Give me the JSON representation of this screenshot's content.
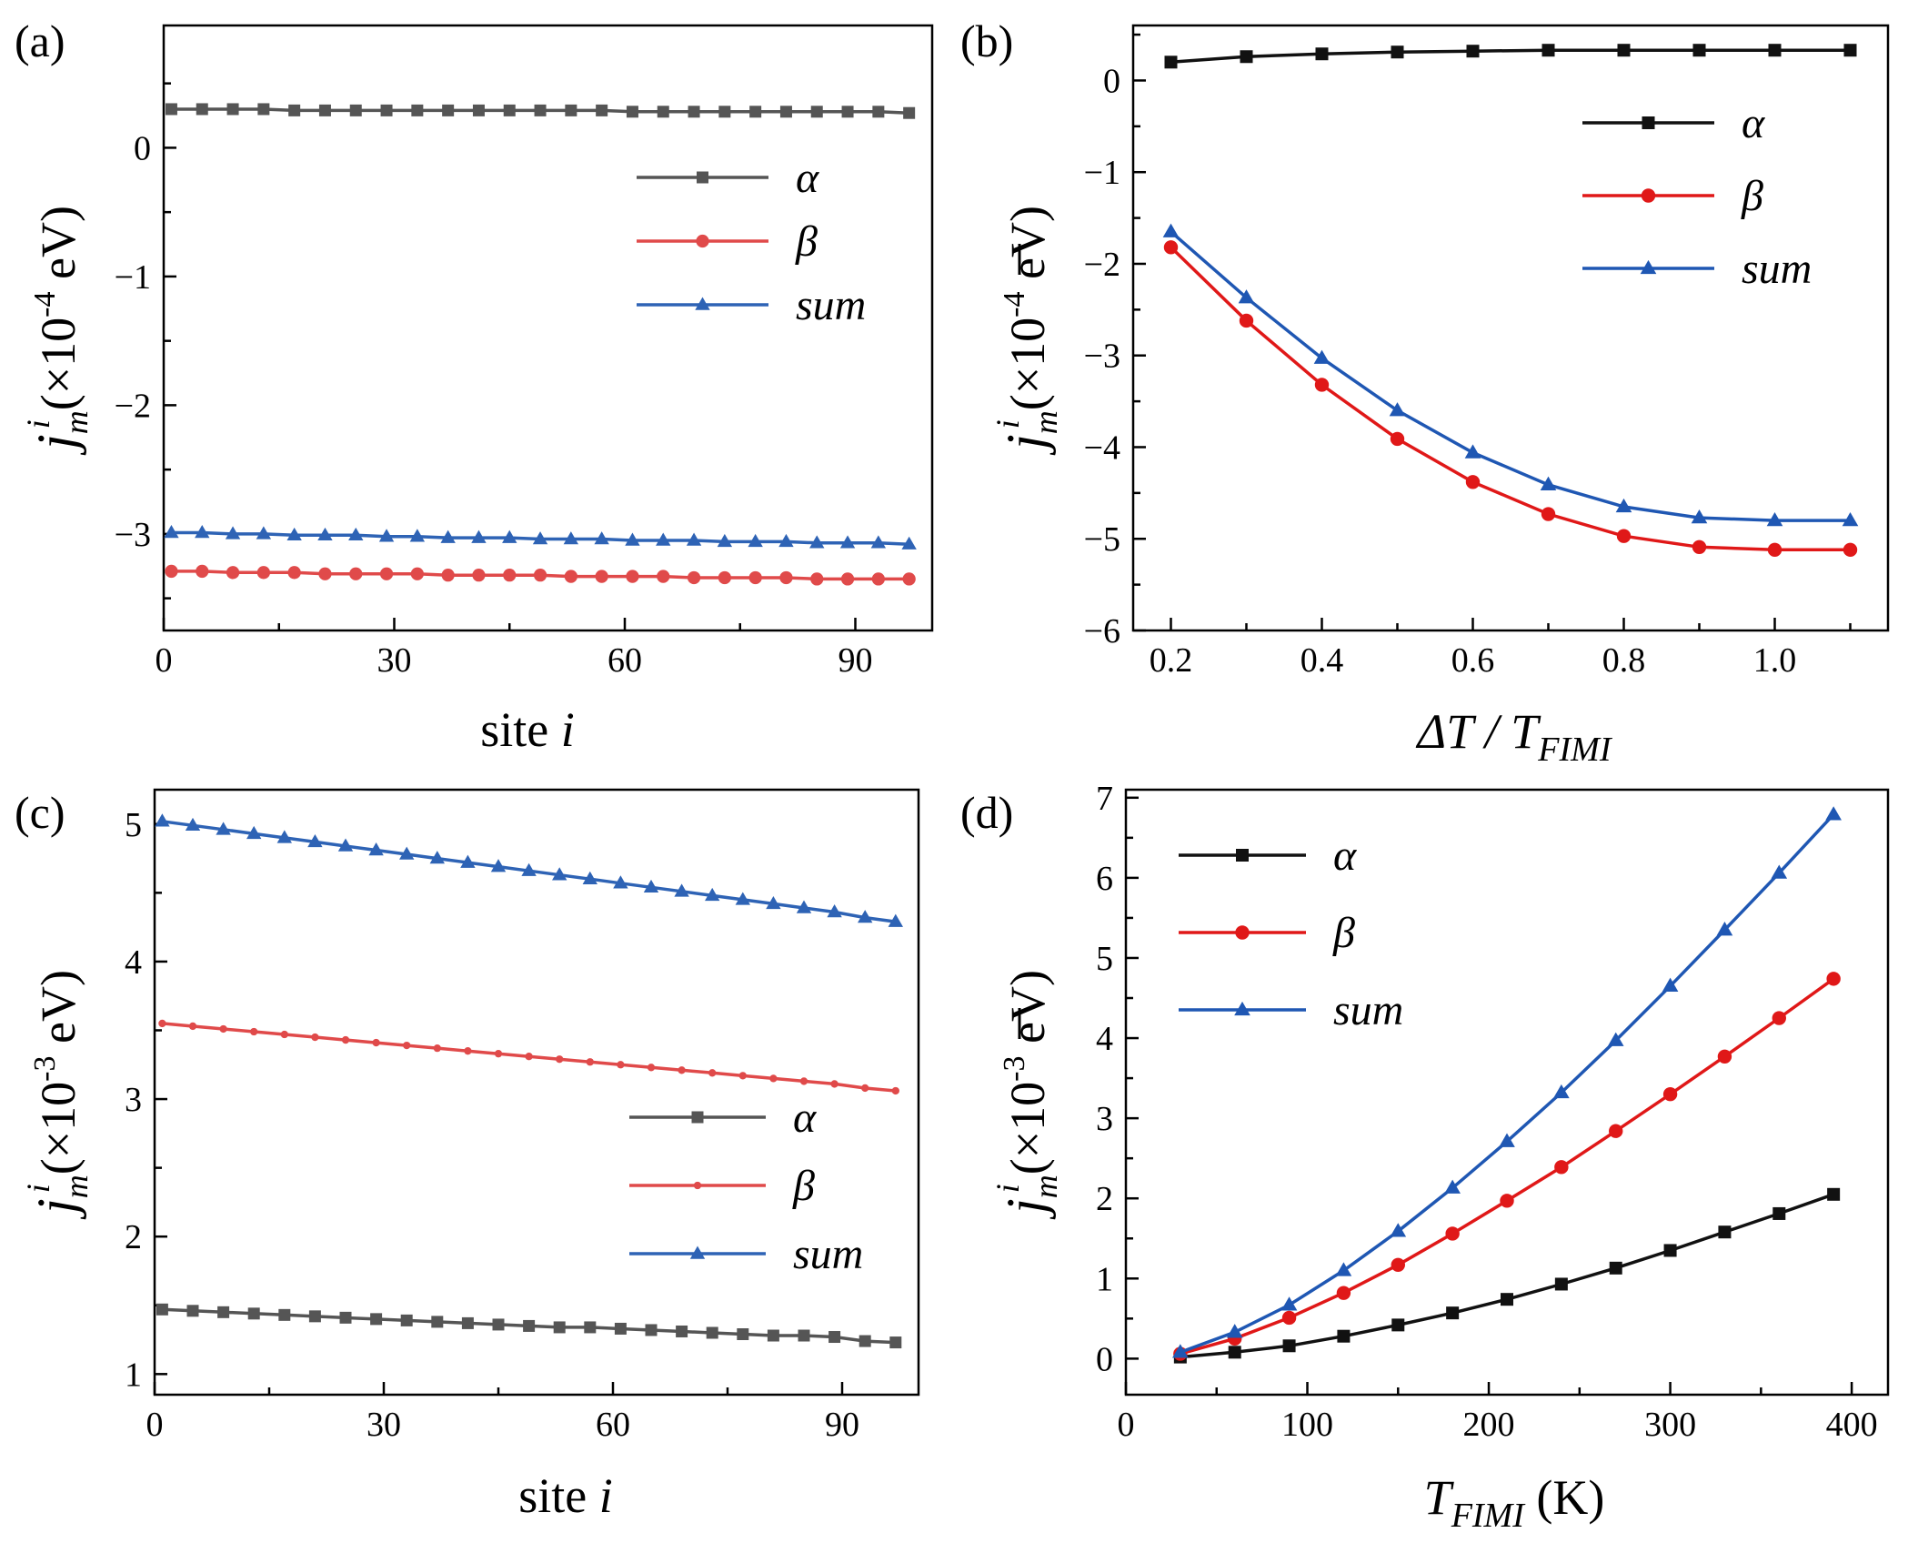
{
  "colors": {
    "alpha_gray": "#555555",
    "beta_salmon": "#e04a4a",
    "sum_blue": "#2e63b5",
    "alpha_black": "#111111",
    "beta_red": "#e01818",
    "sum_blue_dark": "#1f57b3"
  },
  "chart_data": [
    {
      "id": "a",
      "panel_label": "(a)",
      "type": "line",
      "xlabel": "site i",
      "xlabel_main": "site ",
      "xlabel_ital": "i",
      "ylabel": "j_m^i (×10⁻⁴ eV)",
      "ylabel_j": "j",
      "ylabel_sub": "m",
      "ylabel_sup": "i",
      "ylabel_unit": "(×10",
      "ylabel_exp": "-4",
      "ylabel_tail": " eV)",
      "ylabel_bar": false,
      "xlim": [
        0,
        100
      ],
      "ylim": [
        -3.75,
        0.95
      ],
      "xticks": [
        0,
        30,
        60,
        90
      ],
      "xtick_labels": [
        "0",
        "30",
        "60",
        "90"
      ],
      "yticks": [
        0,
        -1,
        -2,
        -3
      ],
      "ytick_labels": [
        "0",
        "−1",
        "−2",
        "−3"
      ],
      "legend": [
        "α",
        "β",
        "sum"
      ],
      "legend_location": "right",
      "series": [
        {
          "name": "α",
          "color_key": "alpha_gray",
          "marker": "square",
          "x": [
            1,
            5,
            9,
            13,
            17,
            21,
            25,
            29,
            33,
            37,
            41,
            45,
            49,
            53,
            57,
            61,
            65,
            69,
            73,
            77,
            81,
            85,
            89,
            93,
            97
          ],
          "y": [
            0.3,
            0.3,
            0.3,
            0.3,
            0.29,
            0.29,
            0.29,
            0.29,
            0.29,
            0.29,
            0.29,
            0.29,
            0.29,
            0.29,
            0.29,
            0.28,
            0.28,
            0.28,
            0.28,
            0.28,
            0.28,
            0.28,
            0.28,
            0.28,
            0.27
          ]
        },
        {
          "name": "β",
          "color_key": "beta_salmon",
          "marker": "circle",
          "x": [
            1,
            5,
            9,
            13,
            17,
            21,
            25,
            29,
            33,
            37,
            41,
            45,
            49,
            53,
            57,
            61,
            65,
            69,
            73,
            77,
            81,
            85,
            89,
            93,
            97
          ],
          "y": [
            -3.29,
            -3.29,
            -3.3,
            -3.3,
            -3.3,
            -3.31,
            -3.31,
            -3.31,
            -3.31,
            -3.32,
            -3.32,
            -3.32,
            -3.32,
            -3.33,
            -3.33,
            -3.33,
            -3.33,
            -3.34,
            -3.34,
            -3.34,
            -3.34,
            -3.35,
            -3.35,
            -3.35,
            -3.35
          ]
        },
        {
          "name": "sum",
          "color_key": "sum_blue",
          "marker": "triangle",
          "x": [
            1,
            5,
            9,
            13,
            17,
            21,
            25,
            29,
            33,
            37,
            41,
            45,
            49,
            53,
            57,
            61,
            65,
            69,
            73,
            77,
            81,
            85,
            89,
            93,
            97
          ],
          "y": [
            -2.99,
            -2.99,
            -3.0,
            -3.0,
            -3.01,
            -3.01,
            -3.01,
            -3.02,
            -3.02,
            -3.03,
            -3.03,
            -3.03,
            -3.04,
            -3.04,
            -3.04,
            -3.05,
            -3.05,
            -3.05,
            -3.06,
            -3.06,
            -3.06,
            -3.07,
            -3.07,
            -3.07,
            -3.08
          ]
        }
      ]
    },
    {
      "id": "b",
      "panel_label": "(b)",
      "type": "line",
      "xlabel": "ΔT / T_FIMI",
      "xlabel_main": "ΔT / T",
      "xlabel_ital": "FIMI",
      "ylabel": "j̄_m^i (×10⁻⁴ eV)",
      "ylabel_j": "j",
      "ylabel_sub": "m",
      "ylabel_sup": "i",
      "ylabel_unit": "(×10",
      "ylabel_exp": "-4",
      "ylabel_tail": " eV)",
      "ylabel_bar": true,
      "xlim": [
        0.15,
        1.15
      ],
      "ylim": [
        -6,
        0.6
      ],
      "xticks": [
        0.2,
        0.4,
        0.6,
        0.8,
        1.0
      ],
      "xtick_labels": [
        "0.2",
        "0.4",
        "0.6",
        "0.8",
        "1.0"
      ],
      "yticks": [
        0,
        -1,
        -2,
        -3,
        -4,
        -5,
        -6
      ],
      "ytick_labels": [
        "0",
        "−1",
        "−2",
        "−3",
        "−4",
        "−5",
        "−6"
      ],
      "legend": [
        "α",
        "β",
        "sum"
      ],
      "legend_location": "top-right",
      "series": [
        {
          "name": "α",
          "color_key": "alpha_black",
          "marker": "square",
          "x": [
            0.2,
            0.3,
            0.4,
            0.5,
            0.6,
            0.7,
            0.8,
            0.9,
            1.0,
            1.1
          ],
          "y": [
            0.2,
            0.26,
            0.29,
            0.31,
            0.32,
            0.33,
            0.33,
            0.33,
            0.33,
            0.33
          ]
        },
        {
          "name": "β",
          "color_key": "beta_red",
          "marker": "circle",
          "x": [
            0.2,
            0.3,
            0.4,
            0.5,
            0.6,
            0.7,
            0.8,
            0.9,
            1.0,
            1.1
          ],
          "y": [
            -1.82,
            -2.62,
            -3.32,
            -3.91,
            -4.38,
            -4.73,
            -4.97,
            -5.09,
            -5.12,
            -5.12
          ]
        },
        {
          "name": "sum",
          "color_key": "sum_blue_dark",
          "marker": "triangle",
          "x": [
            0.2,
            0.3,
            0.4,
            0.5,
            0.6,
            0.7,
            0.8,
            0.9,
            1.0,
            1.1
          ],
          "y": [
            -1.65,
            -2.37,
            -3.03,
            -3.6,
            -4.06,
            -4.41,
            -4.65,
            -4.77,
            -4.8,
            -4.8
          ]
        }
      ]
    },
    {
      "id": "c",
      "panel_label": "(c)",
      "type": "line",
      "xlabel": "site i",
      "xlabel_main": "site ",
      "xlabel_ital": "i",
      "ylabel": "j_m^i (×10⁻³ eV)",
      "ylabel_j": "j",
      "ylabel_sub": "m",
      "ylabel_sup": "i",
      "ylabel_unit": "(×10",
      "ylabel_exp": "-3",
      "ylabel_tail": " eV)",
      "ylabel_bar": false,
      "xlim": [
        0,
        100
      ],
      "ylim": [
        0.85,
        5.25
      ],
      "xticks": [
        0,
        30,
        60,
        90
      ],
      "xtick_labels": [
        "0",
        "30",
        "60",
        "90"
      ],
      "yticks": [
        1,
        2,
        3,
        4,
        5
      ],
      "ytick_labels": [
        "1",
        "2",
        "3",
        "4",
        "5"
      ],
      "legend": [
        "α",
        "β",
        "sum"
      ],
      "legend_location": "bottom-right",
      "series": [
        {
          "name": "α",
          "color_key": "alpha_gray",
          "marker": "square",
          "x": [
            1,
            5,
            9,
            13,
            17,
            21,
            25,
            29,
            33,
            37,
            41,
            45,
            49,
            53,
            57,
            61,
            65,
            69,
            73,
            77,
            81,
            85,
            89,
            93,
            97
          ],
          "y": [
            1.47,
            1.46,
            1.45,
            1.44,
            1.43,
            1.42,
            1.41,
            1.4,
            1.39,
            1.38,
            1.37,
            1.36,
            1.35,
            1.34,
            1.34,
            1.33,
            1.32,
            1.31,
            1.3,
            1.29,
            1.28,
            1.28,
            1.27,
            1.24,
            1.23
          ]
        },
        {
          "name": "β",
          "color_key": "beta_salmon",
          "marker": "dot",
          "x": [
            1,
            5,
            9,
            13,
            17,
            21,
            25,
            29,
            33,
            37,
            41,
            45,
            49,
            53,
            57,
            61,
            65,
            69,
            73,
            77,
            81,
            85,
            89,
            93,
            97
          ],
          "y": [
            3.55,
            3.53,
            3.51,
            3.49,
            3.47,
            3.45,
            3.43,
            3.41,
            3.39,
            3.37,
            3.35,
            3.33,
            3.31,
            3.29,
            3.27,
            3.25,
            3.23,
            3.21,
            3.19,
            3.17,
            3.15,
            3.13,
            3.11,
            3.08,
            3.06
          ]
        },
        {
          "name": "sum",
          "color_key": "sum_blue",
          "marker": "triangle",
          "x": [
            1,
            5,
            9,
            13,
            17,
            21,
            25,
            29,
            33,
            37,
            41,
            45,
            49,
            53,
            57,
            61,
            65,
            69,
            73,
            77,
            81,
            85,
            89,
            93,
            97
          ],
          "y": [
            5.02,
            4.99,
            4.96,
            4.93,
            4.9,
            4.87,
            4.84,
            4.81,
            4.78,
            4.75,
            4.72,
            4.69,
            4.66,
            4.63,
            4.6,
            4.57,
            4.54,
            4.51,
            4.48,
            4.45,
            4.42,
            4.39,
            4.36,
            4.32,
            4.29
          ]
        }
      ]
    },
    {
      "id": "d",
      "panel_label": "(d)",
      "type": "line",
      "xlabel": "T_FIMI (K)",
      "xlabel_main": "T",
      "xlabel_ital": "FIMI",
      "xlabel_tail": " (K)",
      "ylabel": "j̄_m^i (×10⁻³ eV)",
      "ylabel_j": "j",
      "ylabel_sub": "m",
      "ylabel_sup": "i",
      "ylabel_unit": "(×10",
      "ylabel_exp": "-3",
      "ylabel_tail": " eV)",
      "ylabel_bar": true,
      "xlim": [
        0,
        420
      ],
      "ylim": [
        -0.45,
        7.1
      ],
      "xticks": [
        0,
        100,
        200,
        300,
        400
      ],
      "xtick_labels": [
        "0",
        "100",
        "200",
        "300",
        "400"
      ],
      "yticks": [
        0,
        1,
        2,
        3,
        4,
        5,
        6,
        7
      ],
      "ytick_labels": [
        "0",
        "1",
        "2",
        "3",
        "4",
        "5",
        "6",
        "7"
      ],
      "legend": [
        "α",
        "β",
        "sum"
      ],
      "legend_location": "top-left",
      "series": [
        {
          "name": "α",
          "color_key": "alpha_black",
          "marker": "square",
          "x": [
            30,
            60,
            90,
            120,
            150,
            180,
            210,
            240,
            270,
            300,
            330,
            360,
            390
          ],
          "y": [
            0.02,
            0.08,
            0.16,
            0.28,
            0.42,
            0.57,
            0.74,
            0.93,
            1.13,
            1.35,
            1.58,
            1.81,
            2.05
          ]
        },
        {
          "name": "β",
          "color_key": "beta_red",
          "marker": "circle",
          "x": [
            30,
            60,
            90,
            120,
            150,
            180,
            210,
            240,
            270,
            300,
            330,
            360,
            390
          ],
          "y": [
            0.06,
            0.25,
            0.51,
            0.82,
            1.17,
            1.56,
            1.97,
            2.39,
            2.84,
            3.3,
            3.77,
            4.25,
            4.74
          ]
        },
        {
          "name": "sum",
          "color_key": "sum_blue_dark",
          "marker": "triangle",
          "x": [
            30,
            60,
            90,
            120,
            150,
            180,
            210,
            240,
            270,
            300,
            330,
            360,
            390
          ],
          "y": [
            0.08,
            0.33,
            0.67,
            1.1,
            1.59,
            2.13,
            2.71,
            3.32,
            3.97,
            4.65,
            5.35,
            6.06,
            6.79
          ]
        }
      ]
    }
  ]
}
